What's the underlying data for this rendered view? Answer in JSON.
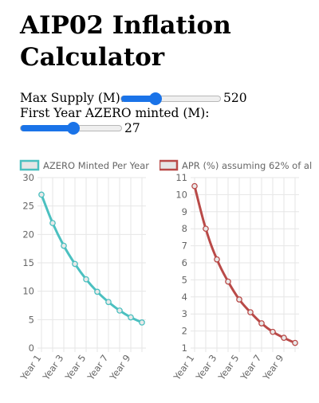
{
  "page": {
    "title": "AIP02 Inflation Calculator"
  },
  "controls": {
    "max_supply": {
      "label": "Max Supply (M):",
      "value": "520",
      "fraction": 0.35
    },
    "first_year": {
      "label": "First Year AZERO minted (M):",
      "value": "27",
      "fraction": 0.52
    }
  },
  "colors": {
    "minted": "#4bc0c0",
    "apr": "#b94a48",
    "slider": "#1a73e8"
  },
  "chart_data": [
    {
      "type": "line",
      "legend_label": "AZERO Minted Per Year",
      "legend_position": "top-left",
      "grid": true,
      "ylim": [
        0,
        30
      ],
      "yticks": [
        0,
        5,
        10,
        15,
        20,
        25,
        30
      ],
      "x_tick_labels": [
        "Year 1",
        "Year 3",
        "Year 5",
        "Year 7",
        "Year 9"
      ],
      "x": [
        "Year 1",
        "Year 2",
        "Year 3",
        "Year 4",
        "Year 5",
        "Year 6",
        "Year 7",
        "Year 8",
        "Year 9",
        "Year 10"
      ],
      "series": [
        {
          "name": "AZERO Minted Per Year",
          "color": "#4bc0c0",
          "values": [
            27,
            22,
            18,
            14.8,
            12.1,
            9.9,
            8.1,
            6.6,
            5.4,
            4.5
          ]
        }
      ]
    },
    {
      "type": "line",
      "legend_label": "APR (%) assuming 62% of al",
      "legend_position": "top-left",
      "grid": true,
      "ylim": [
        1,
        11
      ],
      "yticks": [
        1,
        2,
        3,
        4,
        5,
        6,
        7,
        8,
        9,
        10,
        11
      ],
      "x_tick_labels": [
        "Year 1",
        "Year 3",
        "Year 5",
        "Year 7",
        "Year 9"
      ],
      "x": [
        "Year 1",
        "Year 2",
        "Year 3",
        "Year 4",
        "Year 5",
        "Year 6",
        "Year 7",
        "Year 8",
        "Year 9",
        "Year 10"
      ],
      "series": [
        {
          "name": "APR (%) assuming 62% of al",
          "color": "#b94a48",
          "values": [
            10.5,
            8.0,
            6.2,
            4.9,
            3.85,
            3.1,
            2.45,
            1.95,
            1.6,
            1.3
          ]
        }
      ]
    }
  ]
}
